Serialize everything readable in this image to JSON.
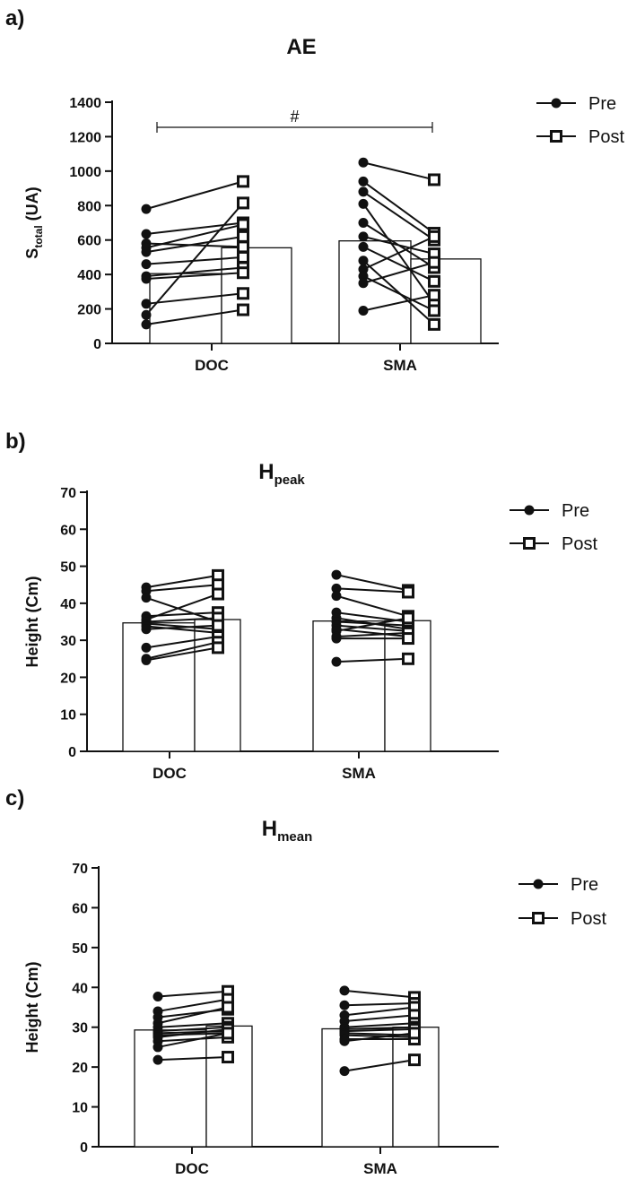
{
  "chart_data": [
    {
      "type": "bar",
      "panel_label": "a)",
      "title": "AE",
      "title_subscript": "",
      "xlabel": "",
      "ylabel": "S",
      "ylabel_subscript": "total",
      "ylabel_suffix": " (UA)",
      "ylim": [
        0,
        1400
      ],
      "yticks": [
        0,
        200,
        400,
        600,
        800,
        1000,
        1200,
        1400
      ],
      "categories": [
        "DOC",
        "SMA"
      ],
      "series": [
        {
          "name": "Pre",
          "marker": "filled-circle",
          "values": [
            405,
            595
          ]
        },
        {
          "name": "Post",
          "marker": "open-square",
          "values": [
            555,
            490
          ]
        }
      ],
      "individual_points": [
        {
          "category": "DOC",
          "pre": [
            780,
            635,
            580,
            555,
            530,
            460,
            390,
            375,
            230,
            165,
            110
          ],
          "post": [
            940,
            700,
            560,
            690,
            620,
            500,
            440,
            410,
            290,
            815,
            195
          ]
        },
        {
          "category": "SMA",
          "pre": [
            1050,
            940,
            880,
            810,
            700,
            620,
            560,
            480,
            430,
            390,
            350,
            190
          ],
          "post": [
            950,
            640,
            600,
            230,
            440,
            520,
            360,
            110,
            620,
            190,
            470,
            280
          ]
        }
      ],
      "annotations": [
        {
          "text": "#",
          "between": [
            "DOC",
            "SMA"
          ]
        }
      ],
      "legend": {
        "position": "top-right",
        "entries": [
          "Pre",
          "Post"
        ]
      }
    },
    {
      "type": "bar",
      "panel_label": "b)",
      "title": "H",
      "title_subscript": "peak",
      "xlabel": "",
      "ylabel": "Height (Cm)",
      "ylabel_subscript": "",
      "ylabel_suffix": "",
      "ylim": [
        0,
        70
      ],
      "yticks": [
        0,
        10,
        20,
        30,
        40,
        50,
        60,
        70
      ],
      "categories": [
        "DOC",
        "SMA"
      ],
      "series": [
        {
          "name": "Pre",
          "marker": "filled-circle",
          "values": [
            34.7,
            35.2
          ]
        },
        {
          "name": "Post",
          "marker": "open-square",
          "values": [
            35.6,
            35.3
          ]
        }
      ],
      "individual_points": [
        {
          "category": "DOC",
          "pre": [
            44.3,
            43.3,
            41.5,
            36.5,
            35.6,
            35.0,
            34.5,
            33.8,
            33.0,
            28.0,
            25.0,
            24.6
          ],
          "post": [
            47.5,
            45.0,
            35.0,
            37.5,
            42.5,
            36.0,
            33.0,
            32.0,
            34.0,
            31.0,
            29.5,
            28.0
          ]
        },
        {
          "category": "SMA",
          "pre": [
            47.7,
            44.0,
            42.0,
            37.5,
            36.0,
            35.0,
            34.0,
            33.0,
            32.5,
            31.0,
            30.5,
            24.2
          ],
          "post": [
            43.5,
            43.0,
            36.5,
            35.0,
            33.0,
            34.0,
            32.5,
            31.0,
            36.0,
            32.0,
            30.5,
            25.0
          ]
        }
      ],
      "annotations": [],
      "legend": {
        "position": "top-right",
        "entries": [
          "Pre",
          "Post"
        ]
      }
    },
    {
      "type": "bar",
      "panel_label": "c)",
      "title": "H",
      "title_subscript": "mean",
      "xlabel": "",
      "ylabel": "Height (Cm)",
      "ylabel_subscript": "",
      "ylabel_suffix": "",
      "ylim": [
        0,
        70
      ],
      "yticks": [
        0,
        10,
        20,
        30,
        40,
        50,
        60,
        70
      ],
      "categories": [
        "DOC",
        "SMA"
      ],
      "series": [
        {
          "name": "Pre",
          "marker": "filled-circle",
          "values": [
            29.3,
            29.6
          ]
        },
        {
          "name": "Post",
          "marker": "open-square",
          "values": [
            30.3,
            30.0
          ]
        }
      ],
      "individual_points": [
        {
          "category": "DOC",
          "pre": [
            37.7,
            34.0,
            32.5,
            31.0,
            30.0,
            29.0,
            28.5,
            28.0,
            27.5,
            26.5,
            25.0,
            21.8
          ],
          "post": [
            39.0,
            37.0,
            34.5,
            35.0,
            31.0,
            30.0,
            29.0,
            28.5,
            29.5,
            27.5,
            28.5,
            22.5
          ]
        },
        {
          "category": "SMA",
          "pre": [
            39.2,
            35.5,
            33.0,
            31.5,
            30.0,
            29.5,
            29.0,
            28.5,
            28.0,
            27.0,
            26.5,
            19.0
          ],
          "post": [
            37.5,
            36.0,
            35.0,
            33.0,
            31.0,
            30.0,
            29.5,
            28.0,
            27.5,
            27.0,
            28.5,
            21.8
          ]
        }
      ],
      "annotations": [],
      "legend": {
        "position": "top-right",
        "entries": [
          "Pre",
          "Post"
        ]
      }
    }
  ]
}
